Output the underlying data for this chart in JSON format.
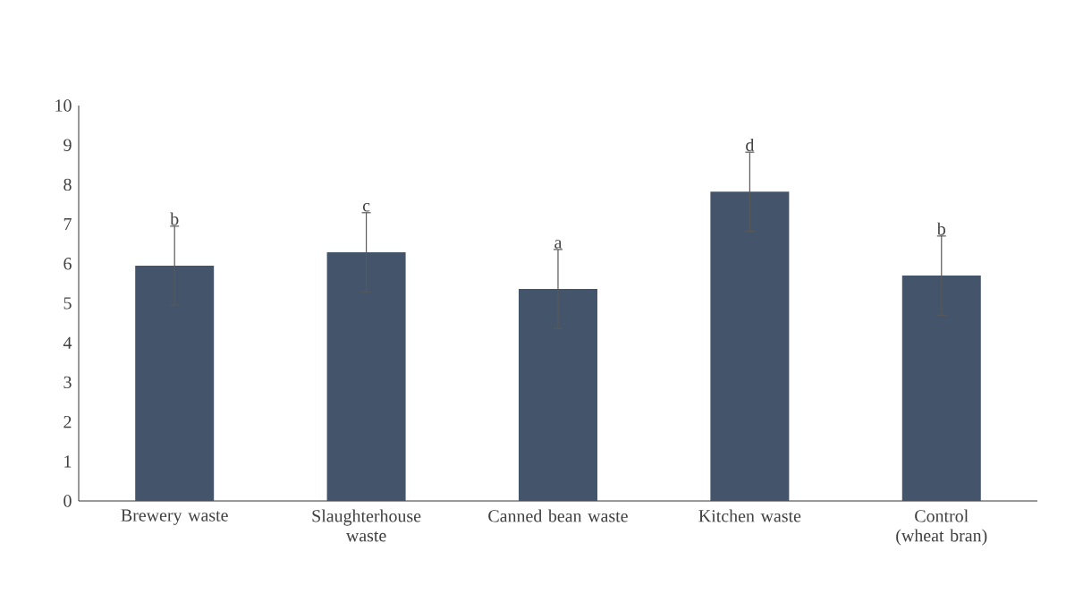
{
  "chart_data": {
    "type": "bar",
    "categories": [
      "Brewery waste",
      "Slaughterhouse waste",
      "Canned bean waste",
      "Kitchen waste",
      "Control (wheat bran)"
    ],
    "values": [
      5.95,
      6.29,
      5.36,
      7.82,
      5.7
    ],
    "errors": [
      1,
      1,
      1,
      1,
      1
    ],
    "color": "#44546a",
    "ylim": [
      0,
      10
    ],
    "yticks": [
      0,
      1,
      2,
      3,
      4,
      5,
      6,
      7,
      8,
      9,
      10
    ],
    "annotations": [
      {
        "text": "b",
        "x": "Brewery waste",
        "y": 6.95
      },
      {
        "text": "c",
        "x": "Slaughterhouse waste",
        "y": 7.29
      },
      {
        "text": "a",
        "x": "Canned bean waste",
        "y": 6.36
      },
      {
        "text": "d",
        "x": "Kitchen waste",
        "y": 8.82
      },
      {
        "text": "b",
        "x": "Control (wheat bran)",
        "y": 6.7
      }
    ]
  }
}
